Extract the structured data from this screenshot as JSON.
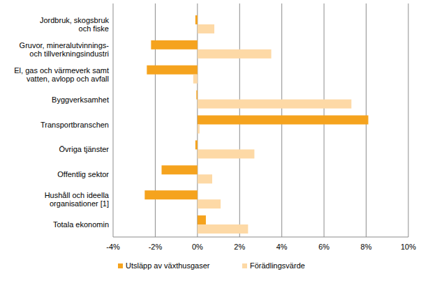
{
  "chart_data": {
    "type": "bar",
    "orientation": "horizontal",
    "grid": true,
    "legend": "bottom",
    "categories": [
      "Jordbruk, skogsbruk\noch fiske",
      "Gruvor, mineralutvinnings-\noch tillverkningsindustri",
      "El, gas och värmeverk samt\nvatten, avlopp och avfall",
      "Byggverksamhet",
      "Transportbranschen",
      "Övriga tjänster",
      "Offentlig sektor",
      "Hushåll och ideella\norganisationer [1]",
      "Totala ekonomin"
    ],
    "series": [
      {
        "name": "Utsläpp av växthusgaser",
        "color": "#f5a31e",
        "values": [
          -0.1,
          -2.2,
          -2.4,
          -0.05,
          8.1,
          -0.1,
          -1.7,
          -2.5,
          0.4
        ]
      },
      {
        "name": "Förädlingsvärde",
        "color": "#fdd9a6",
        "values": [
          0.8,
          3.5,
          -0.2,
          7.3,
          0.1,
          2.7,
          0.7,
          1.1,
          2.4
        ]
      }
    ],
    "xlim": [
      -4,
      10
    ],
    "xticks": [
      {
        "value": -4,
        "label": "-4%"
      },
      {
        "value": -2,
        "label": "-2%"
      },
      {
        "value": 0,
        "label": "0%"
      },
      {
        "value": 2,
        "label": "2%"
      },
      {
        "value": 4,
        "label": "4%"
      },
      {
        "value": 6,
        "label": "6%"
      },
      {
        "value": 8,
        "label": "8%"
      },
      {
        "value": 10,
        "label": "10%"
      }
    ]
  }
}
